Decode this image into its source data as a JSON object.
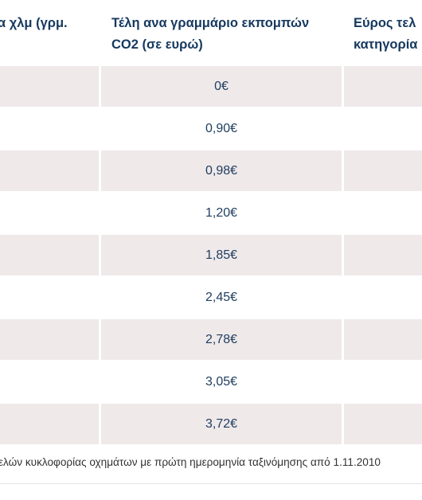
{
  "table": {
    "headers": [
      {
        "lines": [
          "α χλμ (γρμ.",
          ""
        ]
      },
      {
        "lines": [
          "Τέλη ανα γραμμάριο εκπομπών",
          "CO2 (σε ευρώ)"
        ]
      },
      {
        "lines": [
          "Εύρος τελ",
          "κατηγορία"
        ]
      }
    ],
    "rows": [
      {
        "fee": "0€"
      },
      {
        "fee": "0,90€"
      },
      {
        "fee": "0,98€"
      },
      {
        "fee": "1,20€"
      },
      {
        "fee": "1,85€"
      },
      {
        "fee": "2,45€"
      },
      {
        "fee": "2,78€"
      },
      {
        "fee": "3,05€"
      },
      {
        "fee": "3,72€"
      }
    ]
  },
  "footnote": "ελών κυκλοφορίας οχημάτων με πρώτη ημερομηνία ταξινόμησης από 1.11.2010"
}
